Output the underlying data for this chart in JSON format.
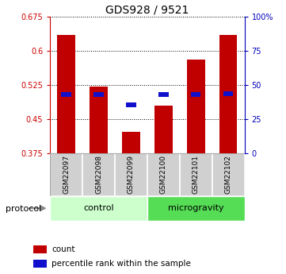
{
  "title": "GDS928 / 9521",
  "samples": [
    "GSM22097",
    "GSM22098",
    "GSM22099",
    "GSM22100",
    "GSM22101",
    "GSM22102"
  ],
  "bar_tops": [
    0.635,
    0.522,
    0.422,
    0.48,
    0.58,
    0.635
  ],
  "blue_y": [
    0.504,
    0.504,
    0.481,
    0.504,
    0.504,
    0.506
  ],
  "bar_base": 0.375,
  "ylim_left": [
    0.375,
    0.675
  ],
  "ylim_right": [
    0,
    100
  ],
  "yticks_left": [
    0.375,
    0.45,
    0.525,
    0.6,
    0.675
  ],
  "ytick_labels_left": [
    "0.375",
    "0.45",
    "0.525",
    "0.6",
    "0.675"
  ],
  "yticks_right": [
    0,
    25,
    50,
    75,
    100
  ],
  "ytick_labels_right": [
    "0",
    "25",
    "50",
    "75",
    "100%"
  ],
  "bar_color": "#c00000",
  "blue_color": "#1010cc",
  "bar_width": 0.55,
  "protocol_groups": [
    {
      "label": "control",
      "indices": [
        0,
        1,
        2
      ],
      "color": "#ccffcc"
    },
    {
      "label": "microgravity",
      "indices": [
        3,
        4,
        5
      ],
      "color": "#55dd55"
    }
  ],
  "legend_items": [
    {
      "label": "count",
      "color": "#c00000"
    },
    {
      "label": "percentile rank within the sample",
      "color": "#1010cc"
    }
  ],
  "protocol_label": "protocol",
  "grid_color": "#000000",
  "background_color": "#ffffff",
  "left_axis_color": "#cc0000",
  "right_axis_color": "#0000bb"
}
